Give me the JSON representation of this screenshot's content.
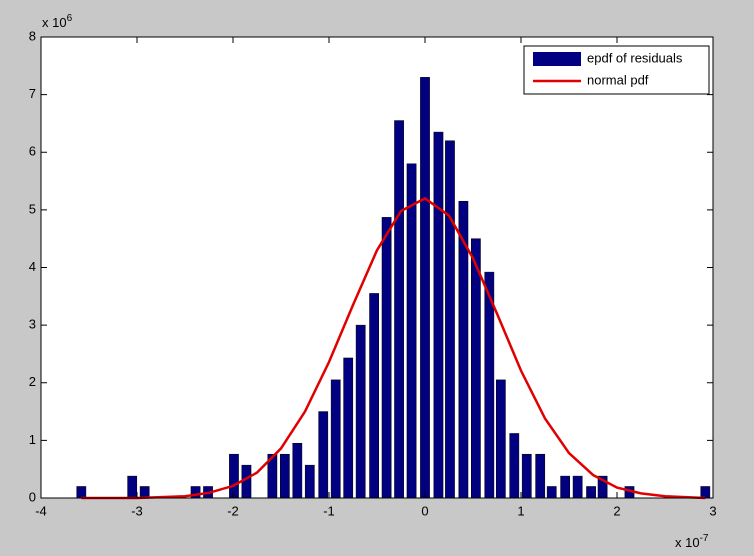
{
  "chart_data": {
    "type": "bar",
    "x_multiplier": "x 10",
    "x_exponent": "-7",
    "y_multiplier": "x 10",
    "y_exponent": "6",
    "xlim": [
      -4,
      3
    ],
    "xticks": [
      -4,
      -3,
      -2,
      -1,
      0,
      1,
      2,
      3
    ],
    "ylim": [
      0,
      8
    ],
    "yticks": [
      0,
      1,
      2,
      3,
      4,
      5,
      6,
      7,
      8
    ],
    "grid": false,
    "legend": "upper right",
    "series": [
      {
        "name": "epdf of residuals",
        "type": "bar",
        "color": "#000080",
        "x": [
          -3.58,
          -3.05,
          -2.92,
          -2.39,
          -2.26,
          -1.99,
          -1.86,
          -1.59,
          -1.46,
          -1.33,
          -1.2,
          -1.06,
          -0.93,
          -0.8,
          -0.67,
          -0.53,
          -0.4,
          -0.27,
          -0.14,
          0.0,
          0.14,
          0.26,
          0.4,
          0.53,
          0.67,
          0.79,
          0.93,
          1.06,
          1.2,
          1.32,
          1.46,
          1.59,
          1.73,
          1.85,
          2.13,
          2.92
        ],
        "values": [
          0.2,
          0.38,
          0.2,
          0.2,
          0.2,
          0.76,
          0.57,
          0.76,
          0.76,
          0.95,
          0.57,
          1.5,
          2.05,
          2.43,
          3.0,
          3.55,
          4.87,
          6.55,
          5.8,
          7.3,
          6.35,
          6.2,
          5.15,
          4.5,
          3.92,
          2.05,
          1.12,
          0.76,
          0.76,
          0.2,
          0.38,
          0.38,
          0.2,
          0.38,
          0.2,
          0.2
        ]
      },
      {
        "name": "normal pdf",
        "type": "line",
        "color": "#e00000",
        "x": [
          -3.58,
          -3.0,
          -2.5,
          -2.25,
          -2.0,
          -1.75,
          -1.5,
          -1.25,
          -1.0,
          -0.75,
          -0.5,
          -0.25,
          0.0,
          0.25,
          0.5,
          0.75,
          1.0,
          1.25,
          1.5,
          1.75,
          2.0,
          2.25,
          2.5,
          2.92
        ],
        "values": [
          0.0,
          0.0,
          0.03,
          0.09,
          0.21,
          0.44,
          0.86,
          1.5,
          2.36,
          3.35,
          4.3,
          4.98,
          5.2,
          4.9,
          4.16,
          3.2,
          2.21,
          1.38,
          0.78,
          0.4,
          0.18,
          0.08,
          0.03,
          0.0
        ]
      }
    ]
  }
}
